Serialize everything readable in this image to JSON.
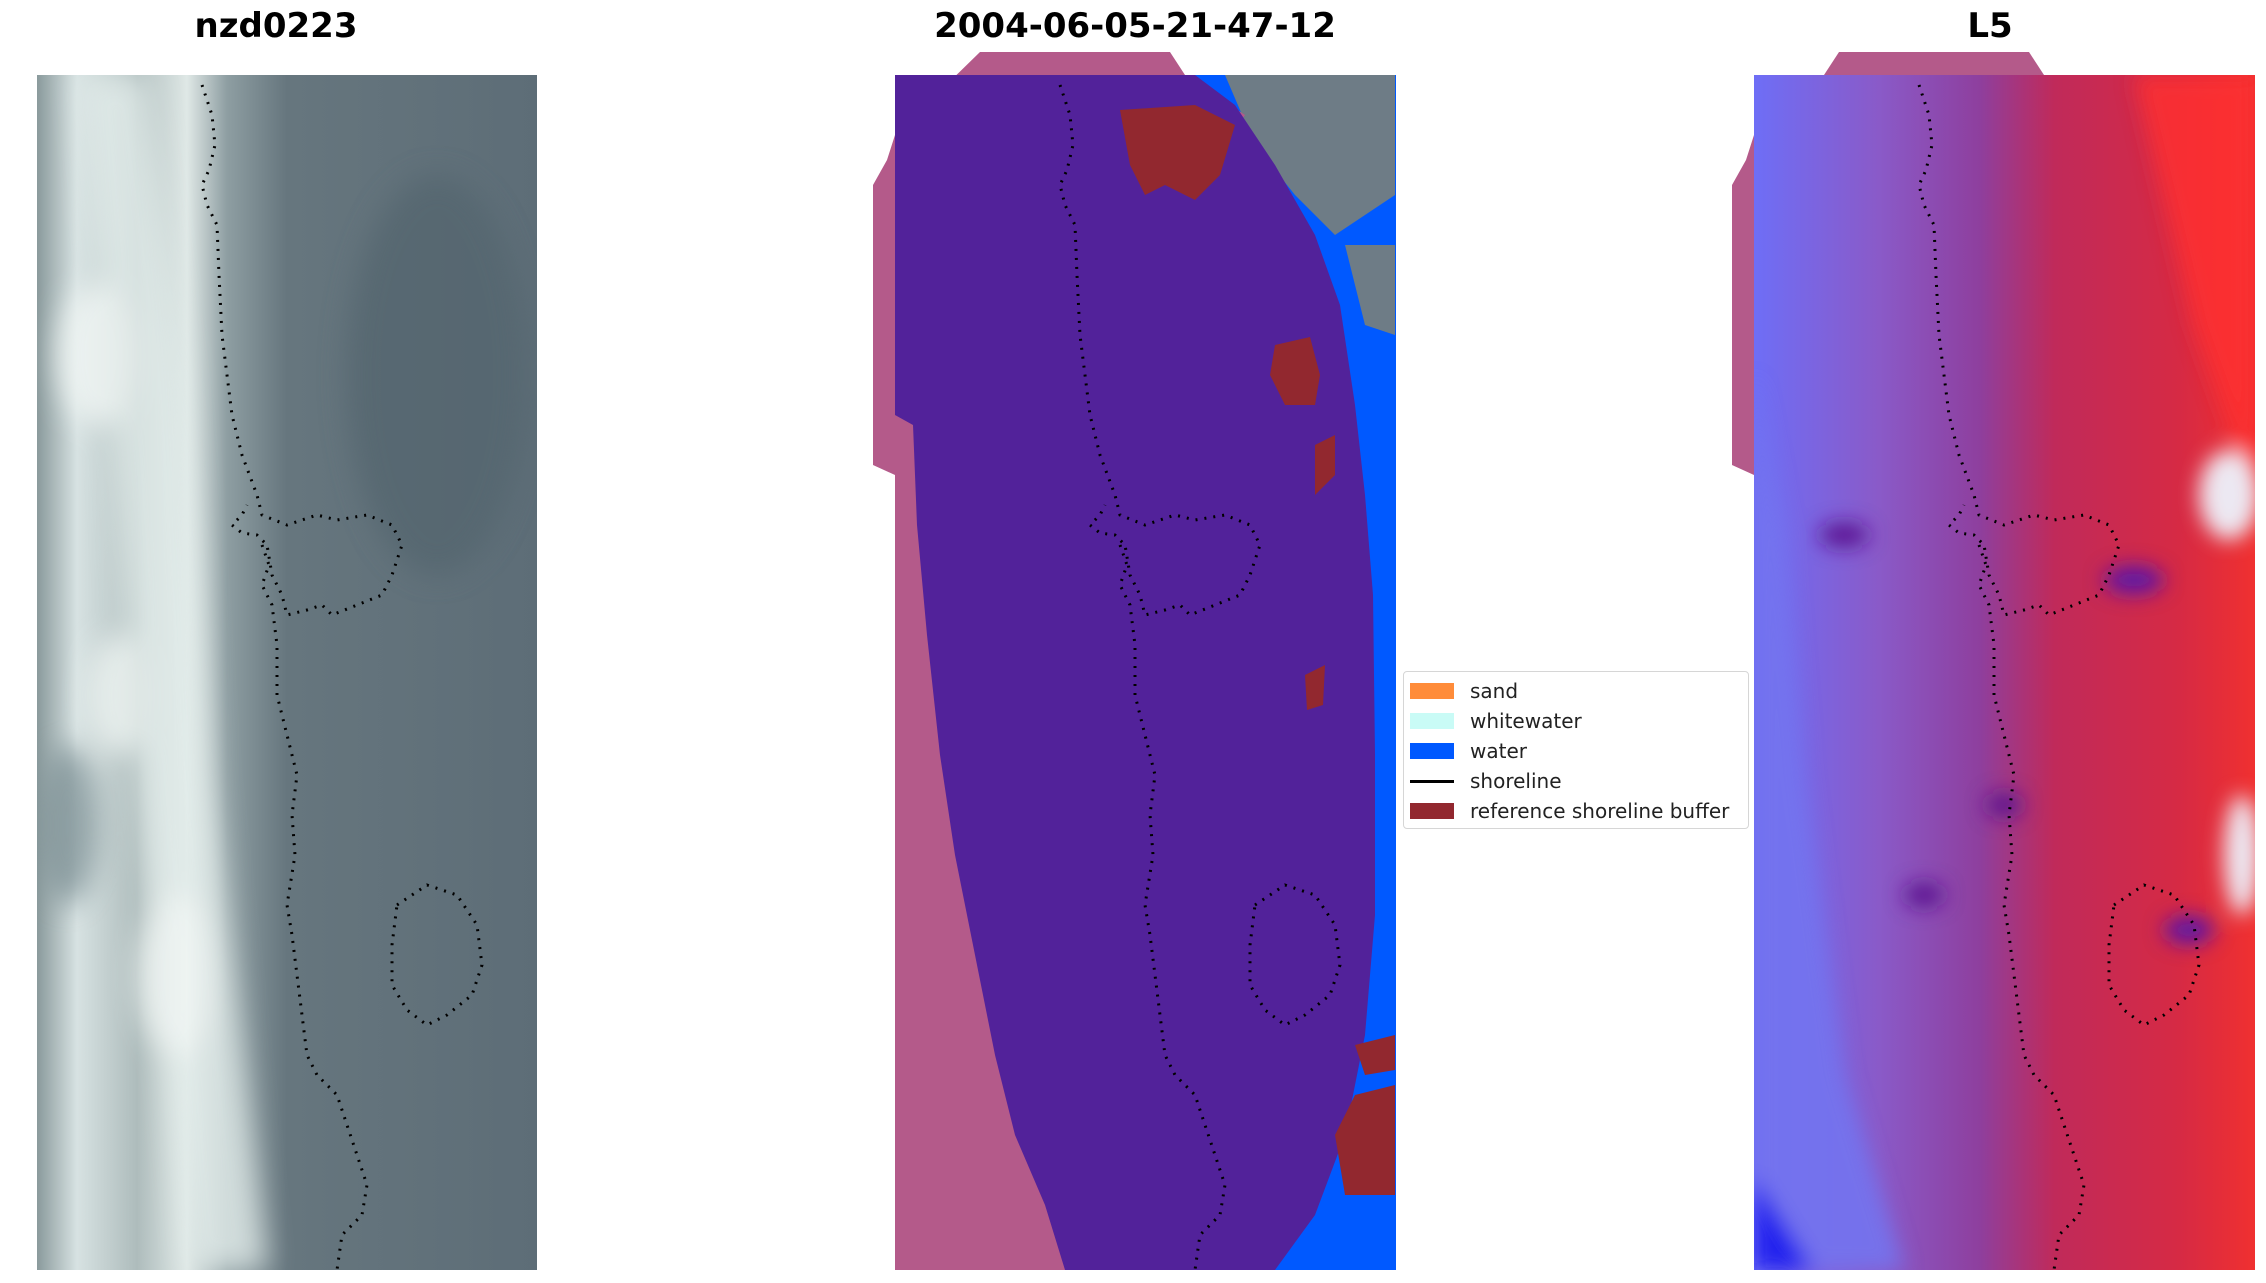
{
  "panels": [
    {
      "title": "nzd0223"
    },
    {
      "title": "2004-06-05-21-47-12"
    },
    {
      "title": "L5"
    }
  ],
  "legend": {
    "items": [
      {
        "label": "sand",
        "kind": "patch",
        "color": "#ff8c3a"
      },
      {
        "label": "whitewater",
        "kind": "patch",
        "color": "#c9fbf6"
      },
      {
        "label": "water",
        "kind": "patch",
        "color": "#0059ff"
      },
      {
        "label": "shoreline",
        "kind": "line",
        "color": "#000000"
      },
      {
        "label": "reference shoreline buffer",
        "kind": "patch",
        "color": "#92282f"
      }
    ]
  },
  "colors": {
    "classified_sand_area": "#52229a",
    "water": "#0059ff",
    "buffer": "#92282f",
    "buffer_outline": "#b45a8a",
    "land_gray": "#6e7c86"
  }
}
